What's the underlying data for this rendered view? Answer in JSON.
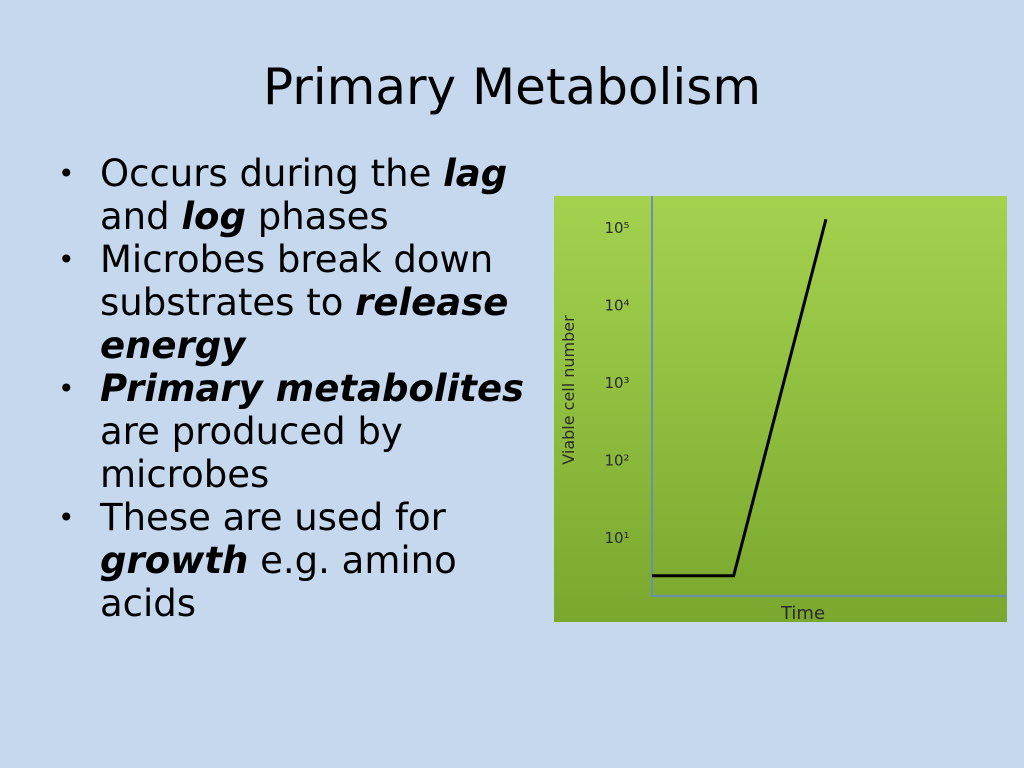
{
  "slide": {
    "title": "Primary Metabolism",
    "bullets": [
      {
        "parts": [
          {
            "text": "Occurs during the "
          },
          {
            "text": "lag",
            "emphasis": true
          },
          {
            "text": " and "
          },
          {
            "text": "log",
            "emphasis": true
          },
          {
            "text": " phases"
          }
        ]
      },
      {
        "parts": [
          {
            "text": "Microbes break down substrates to "
          },
          {
            "text": "release energy",
            "emphasis": true
          }
        ]
      },
      {
        "parts": [
          {
            "text": "Primary metabolites",
            "emphasis": true
          },
          {
            "text": " are produced by microbes"
          }
        ]
      },
      {
        "parts": [
          {
            "text": "These are used for "
          },
          {
            "text": "growth",
            "emphasis": true
          },
          {
            "text": " e.g. amino acids"
          }
        ]
      }
    ],
    "bullet_glyph": "•"
  },
  "chart_data": {
    "type": "line",
    "title": "",
    "xlabel": "Time",
    "ylabel": "Viable cell number",
    "ytick_labels": [
      "10¹",
      "10²",
      "10³",
      "10⁴",
      "10⁵"
    ],
    "yscale": "log",
    "grid": false,
    "series": [
      {
        "points": [
          {
            "x": 0,
            "y": 0.5
          },
          {
            "x": 0.23,
            "y": 0.5
          },
          {
            "x": 0.49,
            "y": 5.1
          }
        ]
      }
    ],
    "colors": {
      "background_top": "#a4d24f",
      "background_bottom": "#7aa82e",
      "axis": "#6b8fb0",
      "line": "#000000",
      "text": "#2a2a2a"
    }
  },
  "colors": {
    "slide_background": "#c5d8ee"
  }
}
